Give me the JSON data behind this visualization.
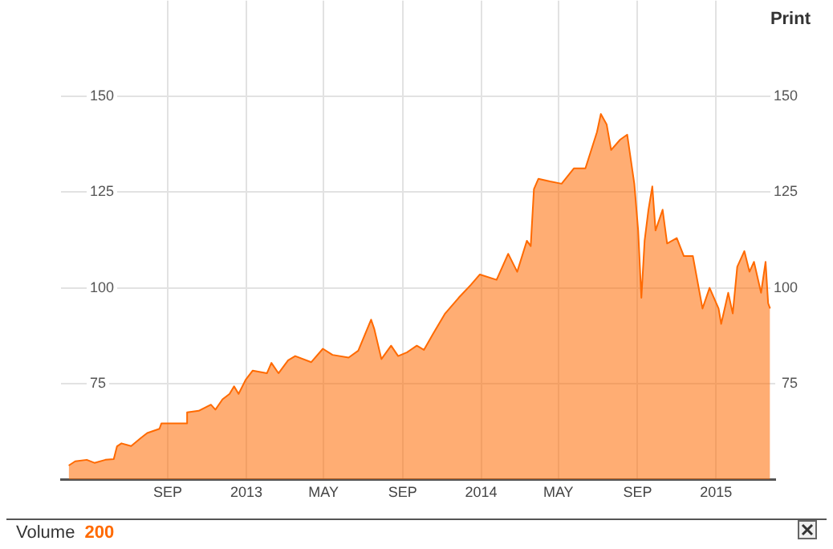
{
  "chart_data": {
    "type": "area",
    "x": [
      "2012-03-31",
      "2012-04-10",
      "2012-04-28",
      "2012-05-10",
      "2012-05-27",
      "2012-06-09",
      "2012-06-14",
      "2012-06-21",
      "2012-07-06",
      "2012-07-21",
      "2012-07-31",
      "2012-08-19",
      "2012-08-22",
      "2012-09-30",
      "2012-10-01",
      "2012-10-19",
      "2012-11-07",
      "2012-11-14",
      "2012-11-25",
      "2012-12-06",
      "2012-12-13",
      "2012-12-20",
      "2012-12-31",
      "2013-01-11",
      "2013-02-02",
      "2013-02-09",
      "2013-02-20",
      "2013-03-07",
      "2013-03-18",
      "2013-04-12",
      "2013-04-30",
      "2013-05-15",
      "2013-06-09",
      "2013-06-24",
      "2013-07-14",
      "2013-07-19",
      "2013-07-30",
      "2013-08-14",
      "2013-08-25",
      "2013-09-08",
      "2013-09-23",
      "2013-10-04",
      "2013-10-18",
      "2013-11-06",
      "2013-11-27",
      "2013-12-16",
      "2013-12-30",
      "2014-01-25",
      "2014-02-12",
      "2014-02-26",
      "2014-03-13",
      "2014-03-19",
      "2014-03-24",
      "2014-03-31",
      "2014-04-18",
      "2014-05-06",
      "2014-05-25",
      "2014-06-12",
      "2014-06-30",
      "2014-07-06",
      "2014-07-15",
      "2014-07-22",
      "2014-08-05",
      "2014-08-16",
      "2014-08-27",
      "2014-09-02",
      "2014-09-07",
      "2014-09-12",
      "2014-09-18",
      "2014-09-24",
      "2014-09-29",
      "2014-10-10",
      "2014-10-17",
      "2014-11-01",
      "2014-11-12",
      "2014-11-26",
      "2014-12-11",
      "2014-12-22",
      "2015-01-05",
      "2015-01-09",
      "2015-01-20",
      "2015-01-27",
      "2015-02-03",
      "2015-02-14",
      "2015-02-22",
      "2015-03-01",
      "2015-03-12",
      "2015-03-19",
      "2015-03-23",
      "2015-03-26"
    ],
    "series": [
      {
        "color": "#ff6a00",
        "values": [
          53.6,
          54.7,
          55.1,
          54.3,
          55.1,
          55.3,
          58.6,
          59.4,
          58.7,
          60.8,
          62.1,
          63.2,
          64.6,
          64.6,
          67.5,
          67.9,
          69.5,
          68.2,
          70.9,
          72.3,
          74.3,
          72.3,
          76.0,
          78.4,
          77.7,
          80.4,
          77.7,
          81.1,
          82.2,
          80.6,
          84.1,
          82.5,
          81.8,
          83.6,
          91.7,
          89.2,
          81.4,
          84.9,
          82.2,
          83.2,
          84.9,
          83.8,
          87.9,
          93.3,
          97.4,
          100.8,
          103.5,
          102.1,
          108.9,
          104.2,
          112.3,
          110.9,
          125.8,
          128.5,
          127.8,
          127.2,
          131.2,
          131.2,
          140.7,
          145.4,
          142.7,
          136.0,
          138.7,
          140.0,
          127.2,
          115.0,
          97.4,
          112.3,
          120.4,
          126.5,
          115.0,
          120.4,
          111.6,
          113.0,
          108.3,
          108.3,
          94.6,
          100.0,
          94.6,
          90.6,
          98.7,
          93.3,
          105.5,
          109.6,
          104.2,
          106.8,
          98.7,
          106.8,
          96.0,
          94.6
        ]
      }
    ],
    "xlim": [
      "2012-03-19",
      "2015-04-03"
    ],
    "xticks": [
      {
        "value": "2012-09",
        "label": "SEP"
      },
      {
        "value": "2013",
        "label": "2013"
      },
      {
        "value": "2013-05",
        "label": "MAY"
      },
      {
        "value": "2013-09",
        "label": "SEP"
      },
      {
        "value": "2014",
        "label": "2014"
      },
      {
        "value": "2014-05",
        "label": "MAY"
      },
      {
        "value": "2014-09",
        "label": "SEP"
      },
      {
        "value": "2015",
        "label": "2015"
      }
    ],
    "ylim": [
      50,
      175
    ],
    "yticks": [
      75,
      100,
      125,
      150
    ],
    "y2lim": [
      50,
      175
    ],
    "y2ticks": [
      75,
      100,
      125,
      150
    ],
    "grid": true,
    "legend": false,
    "marker": "none",
    "line_style": "solid",
    "annotations": [
      "Print",
      "Volume",
      "200"
    ]
  }
}
